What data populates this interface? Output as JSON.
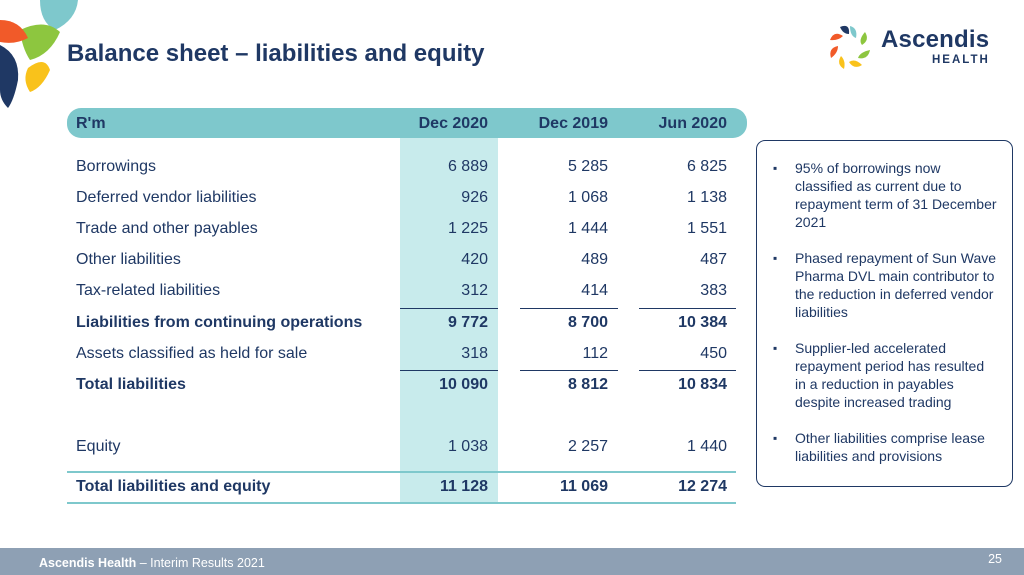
{
  "title": "Balance sheet – liabilities and equity",
  "brand": {
    "name": "Ascendis",
    "sub": "HEALTH"
  },
  "table": {
    "headers": [
      "R'm",
      "Dec 2020",
      "Dec 2019",
      "Jun 2020"
    ],
    "rows": [
      {
        "label": "Borrowings",
        "values": [
          "6 889",
          "5 285",
          "6 825"
        ]
      },
      {
        "label": "Deferred vendor liabilities",
        "values": [
          "926",
          "1 068",
          "1 138"
        ]
      },
      {
        "label": "Trade and other payables",
        "values": [
          "1 225",
          "1 444",
          "1 551"
        ]
      },
      {
        "label": "Other liabilities",
        "values": [
          "420",
          "489",
          "487"
        ]
      },
      {
        "label": "Tax-related liabilities",
        "values": [
          "312",
          "414",
          "383"
        ]
      },
      {
        "label": "Liabilities from continuing operations",
        "values": [
          "9 772",
          "8 700",
          "10 384"
        ]
      },
      {
        "label": "Assets classified as held for sale",
        "values": [
          "318",
          "112",
          "450"
        ]
      },
      {
        "label": "Total liabilities",
        "values": [
          "10 090",
          "8 812",
          "10 834"
        ]
      },
      {
        "label": "Equity",
        "values": [
          "1 038",
          "2 257",
          "1 440"
        ]
      },
      {
        "label": "Total liabilities and equity",
        "values": [
          "11 128",
          "11 069",
          "12 274"
        ]
      }
    ]
  },
  "notes": [
    "95% of borrowings now classified as current due to repayment term of 31 December 2021",
    "Phased repayment of Sun Wave Pharma DVL main contributor to the reduction in deferred vendor liabilities",
    "Supplier-led accelerated repayment period has resulted in a reduction in payables despite increased trading",
    "Other liabilities comprise lease liabilities and provisions"
  ],
  "footer": {
    "company": "Ascendis Health",
    "text": " – Interim Results 2021",
    "page": "25"
  },
  "colors": {
    "navy": "#1f3864",
    "teal": "#7ec8cc",
    "teal_light": "#c8ebec",
    "footer_bg": "#8ea0b4"
  }
}
